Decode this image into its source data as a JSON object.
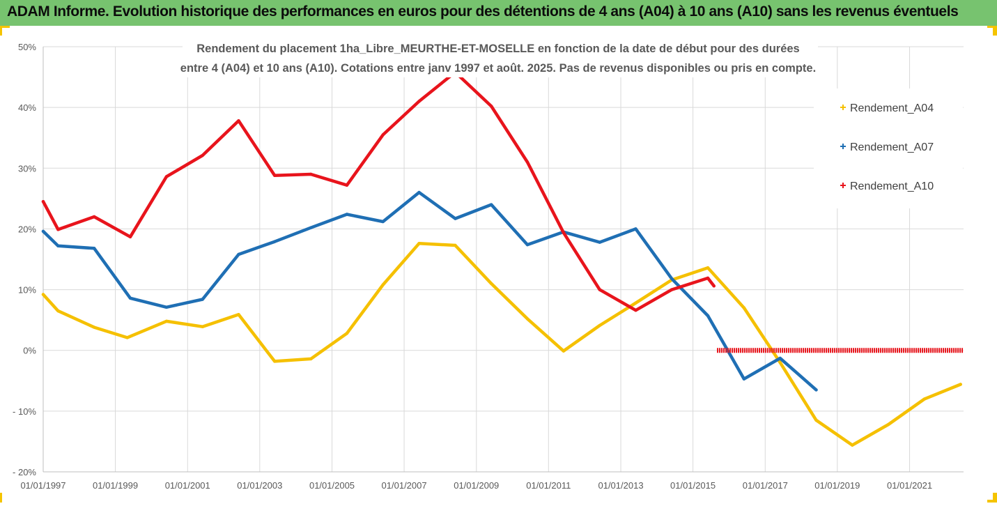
{
  "page_title": "ADAM Informe. Evolution historique des performances en euros pour des détentions de 4 ans (A04) à 10 ans (A10) sans les revenus éventuels",
  "colors": {
    "banner_bg": "#77c36f",
    "frame_accent": "#f5c400",
    "A04": "#f5c000",
    "A07": "#1f6fb4",
    "A10": "#e8141c",
    "grid": "#d9d9d9",
    "axis_text": "#595959"
  },
  "chart_data": {
    "type": "line",
    "title_lines": [
      "Rendement du placement 1ha_Libre_MEURTHE-ET-MOSELLE en fonction de la date de début pour des durées",
      "entre 4 (A04) et 10 ans (A10). Cotations entre janv 1997 et août. 2025. Pas de revenus disponibles ou pris en compte."
    ],
    "xlabel": "",
    "ylabel": "",
    "x_range": [
      "1997-01-01",
      "2022-07-01"
    ],
    "y_range": [
      -20,
      50
    ],
    "y_ticks": [
      50,
      40,
      30,
      20,
      10,
      0,
      -10,
      -20
    ],
    "y_tick_labels": [
      "50%",
      "40%",
      "30%",
      "20%",
      "10%",
      "0%",
      "- 10%",
      "- 20%"
    ],
    "x_ticks": [
      "1997-01-01",
      "1999-01-01",
      "2001-01-01",
      "2003-01-01",
      "2005-01-01",
      "2007-01-01",
      "2009-01-01",
      "2011-01-01",
      "2013-01-01",
      "2015-01-01",
      "2017-01-01",
      "2019-01-01",
      "2021-01-01"
    ],
    "x_tick_labels": [
      "01/01/1997",
      "01/01/1999",
      "01/01/2001",
      "01/01/2003",
      "01/01/2005",
      "01/01/2007",
      "01/01/2009",
      "01/01/2011",
      "01/01/2013",
      "01/01/2015",
      "01/01/2017",
      "01/01/2019",
      "01/01/2021"
    ],
    "grid": true,
    "legend_position": "right",
    "series": [
      {
        "name": "Rendement_A04",
        "color_key": "A04",
        "points": [
          [
            "1997-01-01",
            9.2
          ],
          [
            "1997-06-01",
            6.5
          ],
          [
            "1998-06-01",
            3.8
          ],
          [
            "1999-05-01",
            2.1
          ],
          [
            "2000-06-01",
            4.8
          ],
          [
            "2001-06-01",
            3.9
          ],
          [
            "2002-06-01",
            5.9
          ],
          [
            "2003-06-01",
            -1.8
          ],
          [
            "2004-06-01",
            -1.4
          ],
          [
            "2005-06-01",
            2.8
          ],
          [
            "2006-06-01",
            10.8
          ],
          [
            "2007-06-01",
            17.6
          ],
          [
            "2008-06-01",
            17.3
          ],
          [
            "2009-06-01",
            11.0
          ],
          [
            "2010-06-01",
            5.2
          ],
          [
            "2011-06-01",
            -0.1
          ],
          [
            "2012-06-01",
            4.1
          ],
          [
            "2013-06-01",
            7.8
          ],
          [
            "2014-06-01",
            11.6
          ],
          [
            "2015-06-01",
            13.6
          ],
          [
            "2016-06-01",
            7.0
          ],
          [
            "2017-06-01",
            -2.0
          ],
          [
            "2018-06-01",
            -11.5
          ],
          [
            "2019-06-01",
            -15.6
          ],
          [
            "2020-06-01",
            -12.2
          ],
          [
            "2021-06-01",
            -8.0
          ],
          [
            "2022-06-01",
            -5.6
          ]
        ]
      },
      {
        "name": "Rendement_A07",
        "color_key": "A07",
        "points": [
          [
            "1997-01-01",
            19.6
          ],
          [
            "1997-06-01",
            17.2
          ],
          [
            "1998-06-01",
            16.8
          ],
          [
            "1999-06-01",
            8.6
          ],
          [
            "2000-06-01",
            7.1
          ],
          [
            "2001-06-01",
            8.4
          ],
          [
            "2002-06-01",
            15.8
          ],
          [
            "2003-06-01",
            17.9
          ],
          [
            "2004-06-01",
            20.2
          ],
          [
            "2005-06-01",
            22.4
          ],
          [
            "2006-06-01",
            21.2
          ],
          [
            "2007-06-01",
            26.0
          ],
          [
            "2008-06-01",
            21.7
          ],
          [
            "2009-06-01",
            24.0
          ],
          [
            "2010-06-01",
            17.4
          ],
          [
            "2011-06-01",
            19.5
          ],
          [
            "2012-06-01",
            17.8
          ],
          [
            "2013-06-01",
            20.0
          ],
          [
            "2014-06-01",
            11.8
          ],
          [
            "2015-06-01",
            5.7
          ],
          [
            "2016-06-01",
            -4.7
          ],
          [
            "2017-06-01",
            -1.3
          ],
          [
            "2018-06-01",
            -6.5
          ]
        ]
      },
      {
        "name": "Rendement_A10",
        "color_key": "A10",
        "points": [
          [
            "1997-01-01",
            24.5
          ],
          [
            "1997-06-01",
            19.9
          ],
          [
            "1998-06-01",
            22.0
          ],
          [
            "1999-06-01",
            18.7
          ],
          [
            "2000-06-01",
            28.6
          ],
          [
            "2001-06-01",
            32.1
          ],
          [
            "2002-06-01",
            37.8
          ],
          [
            "2003-06-01",
            28.8
          ],
          [
            "2004-06-01",
            29.0
          ],
          [
            "2005-06-01",
            27.2
          ],
          [
            "2006-06-01",
            35.5
          ],
          [
            "2007-06-01",
            41.0
          ],
          [
            "2008-06-01",
            45.8
          ],
          [
            "2009-06-01",
            40.2
          ],
          [
            "2010-06-01",
            31.0
          ],
          [
            "2011-06-01",
            19.4
          ],
          [
            "2012-06-01",
            10.0
          ],
          [
            "2013-06-01",
            6.6
          ],
          [
            "2014-06-01",
            10.0
          ],
          [
            "2015-06-01",
            11.9
          ],
          [
            "2015-08-01",
            10.6
          ]
        ],
        "flat_zero_segment": {
          "from": "2015-09-01",
          "to": "2022-07-01",
          "value": 0
        }
      }
    ]
  }
}
